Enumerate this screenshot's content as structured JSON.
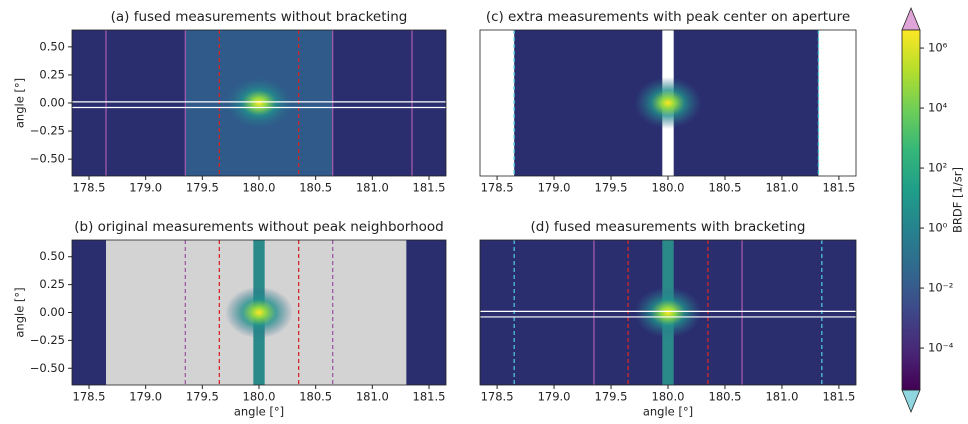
{
  "chart_data": [
    {
      "type": "heatmap",
      "title": "(a) fused measurements without bracketing",
      "ylabel": "angle [°]",
      "background": "#2a2d6e",
      "xlim": [
        178.35,
        181.65
      ],
      "ylim": [
        -0.65,
        0.65
      ],
      "xticks": [
        178.5,
        {
          "value": 179,
          "label": "179.0"
        },
        179.5,
        {
          "value": 180,
          "label": "180.0"
        },
        180.5,
        {
          "value": 181,
          "label": "181.0"
        },
        181.5
      ],
      "yticks": [
        {
          "value": 0.5,
          "label": "0.50"
        },
        {
          "value": 0.25,
          "label": "0.25"
        },
        {
          "value": 0,
          "label": "0.00"
        },
        {
          "value": -0.25,
          "label": "−0.25"
        },
        {
          "value": -0.5,
          "label": "−0.50"
        }
      ],
      "regions": [
        {
          "x": [
            179.35,
            180.65
          ],
          "color": "#2f5a8a"
        }
      ],
      "vlines": [
        {
          "x": 178.65,
          "color": "#a05aa8",
          "dashed": false
        },
        {
          "x": 179.35,
          "color": "#a05aa8",
          "dashed": false
        },
        {
          "x": 179.65,
          "color": "#d62728",
          "dashed": true
        },
        {
          "x": 180.35,
          "color": "#d62728",
          "dashed": true
        },
        {
          "x": 180.65,
          "color": "#a05aa8",
          "dashed": false
        },
        {
          "x": 181.35,
          "color": "#a05aa8",
          "dashed": false
        }
      ],
      "hlines": [
        0.01,
        -0.04
      ],
      "peak": {
        "x": 180,
        "y": 0
      }
    },
    {
      "type": "heatmap",
      "title": "(c) extra measurements with peak center on aperture",
      "background": "#ffffff",
      "xlim": [
        178.35,
        181.65
      ],
      "ylim": [
        -0.65,
        0.65
      ],
      "xticks": [
        178.5,
        {
          "value": 179,
          "label": "179.0"
        },
        179.5,
        {
          "value": 180,
          "label": "180.0"
        },
        180.5,
        {
          "value": 181,
          "label": "181.0"
        },
        181.5
      ],
      "regions": [
        {
          "x": [
            178.65,
            179.95
          ],
          "color": "#2a2d6e"
        },
        {
          "x": [
            180.05,
            181.32
          ],
          "color": "#2a2d6e"
        }
      ],
      "vlines": [
        {
          "x": 178.65,
          "color": "#4fc3d8",
          "dashed": true
        },
        {
          "x": 181.32,
          "color": "#4fc3d8",
          "dashed": true
        }
      ],
      "hlines": [],
      "peak": {
        "x": 180,
        "y": 0
      }
    },
    {
      "type": "heatmap",
      "title": "(b) original measurements without peak neighborhood",
      "ylabel": "angle [°]",
      "xlabel": "angle [°]",
      "background": "#2a2d6e",
      "xlim": [
        178.35,
        181.65
      ],
      "ylim": [
        -0.65,
        0.65
      ],
      "xticks": [
        178.5,
        {
          "value": 179,
          "label": "179.0"
        },
        179.5,
        {
          "value": 180,
          "label": "180.0"
        },
        180.5,
        {
          "value": 181,
          "label": "181.0"
        },
        181.5
      ],
      "yticks": [
        {
          "value": 0.5,
          "label": "0.50"
        },
        {
          "value": 0.25,
          "label": "0.25"
        },
        {
          "value": 0,
          "label": "0.00"
        },
        {
          "value": -0.25,
          "label": "−0.25"
        },
        {
          "value": -0.5,
          "label": "−0.50"
        }
      ],
      "regions": [
        {
          "x": [
            178.65,
            181.3
          ],
          "color": "#d3d3d3"
        },
        {
          "x": [
            179.95,
            180.05
          ],
          "color": "#2a8a8a"
        }
      ],
      "vlines": [
        {
          "x": 179.35,
          "color": "#a05aa8",
          "dashed": true
        },
        {
          "x": 179.65,
          "color": "#d62728",
          "dashed": true
        },
        {
          "x": 180.35,
          "color": "#d62728",
          "dashed": true
        },
        {
          "x": 180.65,
          "color": "#a05aa8",
          "dashed": true
        }
      ],
      "hlines": [],
      "peak": {
        "x": 180,
        "y": 0
      }
    },
    {
      "type": "heatmap",
      "title": "(d) fused measurements with bracketing",
      "xlabel": "angle [°]",
      "background": "#2a2d6e",
      "xlim": [
        178.35,
        181.65
      ],
      "ylim": [
        -0.65,
        0.65
      ],
      "xticks": [
        178.5,
        {
          "value": 179,
          "label": "179.0"
        },
        179.5,
        {
          "value": 180,
          "label": "180.0"
        },
        180.5,
        {
          "value": 181,
          "label": "181.0"
        },
        181.5
      ],
      "regions": [
        {
          "x": [
            179.95,
            180.05
          ],
          "color": "#2a8a8a"
        }
      ],
      "vlines": [
        {
          "x": 178.65,
          "color": "#4fc3d8",
          "dashed": true
        },
        {
          "x": 179.35,
          "color": "#a05aa8",
          "dashed": false
        },
        {
          "x": 179.65,
          "color": "#d62728",
          "dashed": true
        },
        {
          "x": 180.35,
          "color": "#d62728",
          "dashed": true
        },
        {
          "x": 180.65,
          "color": "#a05aa8",
          "dashed": false
        },
        {
          "x": 181.35,
          "color": "#4fc3d8",
          "dashed": true
        }
      ],
      "hlines": [
        0.01,
        -0.04
      ],
      "peak": {
        "x": 180,
        "y": 0
      }
    },
    {
      "type": "colorbar",
      "label": "BRDF [1/sr]",
      "log": true,
      "colormap": "viridis",
      "over_color": "#e0a5d8",
      "under_color": "#8fd6e0",
      "ylim": [
        4e-06,
        4000000
      ],
      "yticks": [
        {
          "value": 1000000,
          "label": "10⁶"
        },
        {
          "value": 10000,
          "label": "10⁴"
        },
        {
          "value": 100,
          "label": "10²"
        },
        {
          "value": 1,
          "label": "10⁰"
        },
        {
          "value": 0.01,
          "label": "10⁻²"
        },
        {
          "value": 0.0001,
          "label": "10⁻⁴"
        }
      ]
    }
  ]
}
